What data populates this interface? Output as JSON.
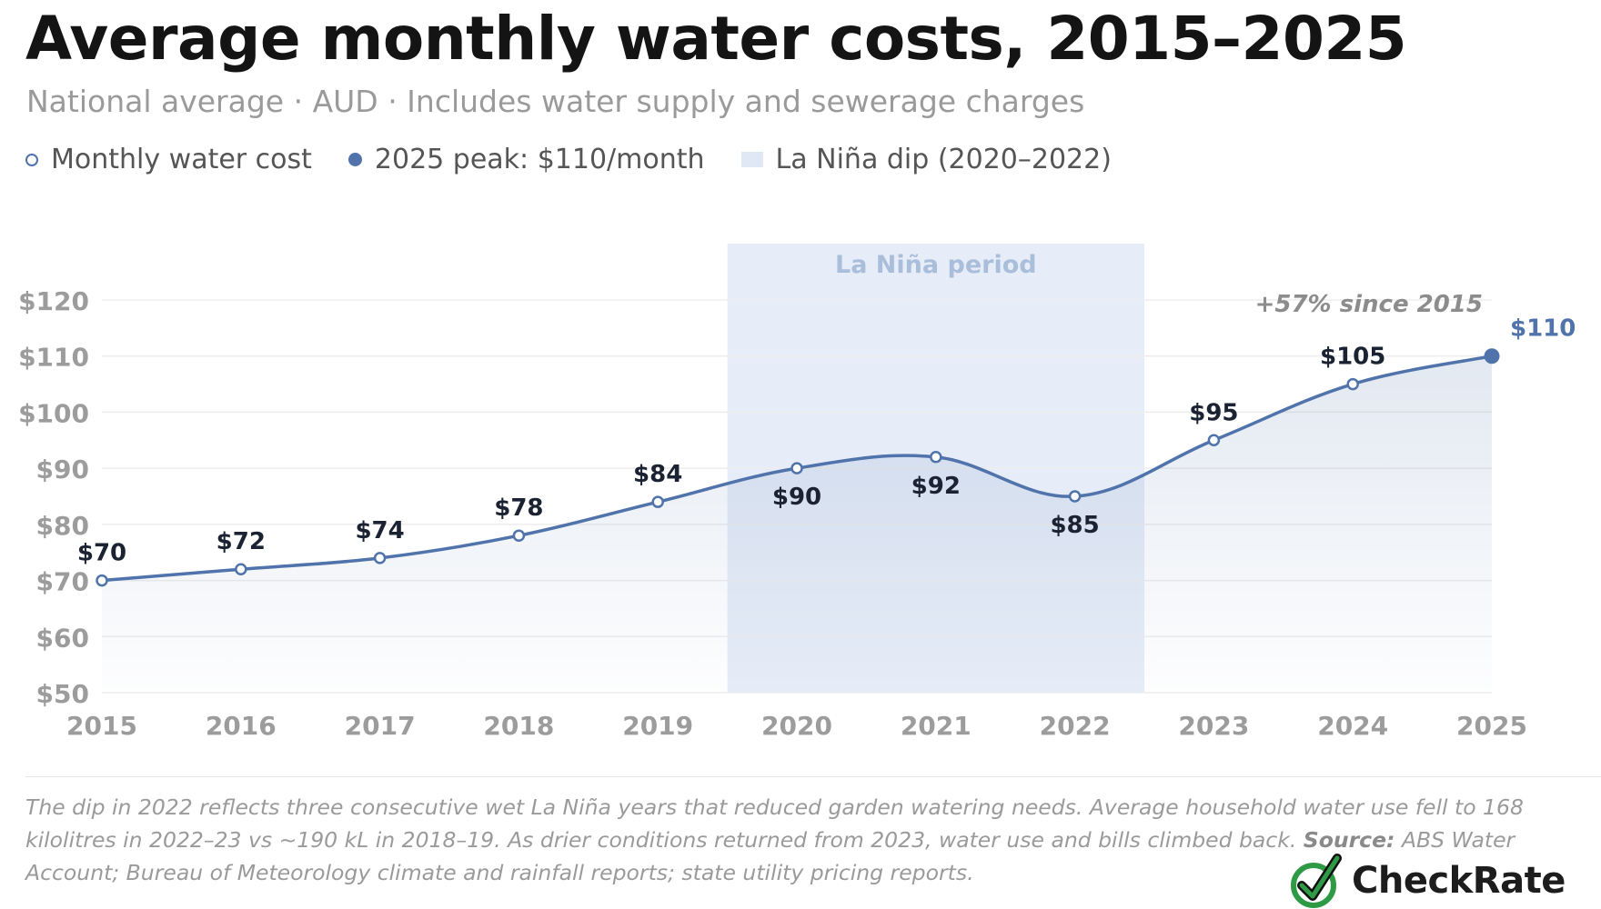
{
  "header": {
    "title": "Average monthly water costs, 2015–2025",
    "subtitle": "National average · AUD · Includes water supply and sewerage charges"
  },
  "legend": {
    "series_label": "Monthly water cost",
    "peak_label": "2025 peak: $110/month",
    "band_label": "La Niña dip (2020–2022)"
  },
  "colors": {
    "line": "#4f73aa",
    "band": "#e7edf8",
    "tick": "#9c9c9c",
    "label": "#1b2333"
  },
  "chart_data": {
    "type": "line",
    "x": [
      2015,
      2016,
      2017,
      2018,
      2019,
      2020,
      2021,
      2022,
      2023,
      2024,
      2025
    ],
    "series": [
      {
        "name": "Monthly water cost",
        "values": [
          70,
          72,
          74,
          78,
          84,
          90,
          92,
          85,
          95,
          105,
          110
        ]
      }
    ],
    "data_labels": [
      "$70",
      "$72",
      "$74",
      "$78",
      "$84",
      "$90",
      "$92",
      "$85",
      "$95",
      "$105",
      "$110"
    ],
    "xticks": [
      "2015",
      "2016",
      "2017",
      "2018",
      "2019",
      "2020",
      "2021",
      "2022",
      "2023",
      "2024",
      "2025"
    ],
    "yticks": [
      "$50",
      "$60",
      "$70",
      "$80",
      "$90",
      "$100",
      "$110",
      "$120"
    ],
    "ylim": [
      50,
      120
    ],
    "shaded_band": {
      "from": 2019.5,
      "to": 2022.5,
      "label": "La Niña period"
    },
    "annotation": "+57% since 2015",
    "grid": true,
    "legend_position": "top-left"
  },
  "footnote": {
    "text": "The dip in 2022 reflects three consecutive wet La Niña years that reduced garden watering needs. Average household water use fell to 168 kilolitres in 2022–23 vs ~190 kL in 2018–19. As drier conditions returned from 2023, water use and bills climbed back.",
    "source_label": "Source:",
    "source_text": "ABS Water Account; Bureau of Meteorology climate and rainfall reports; state utility pricing reports."
  },
  "brand": {
    "logo_text": "CheckRate",
    "logo_icon": "checkmark-circle-icon"
  }
}
